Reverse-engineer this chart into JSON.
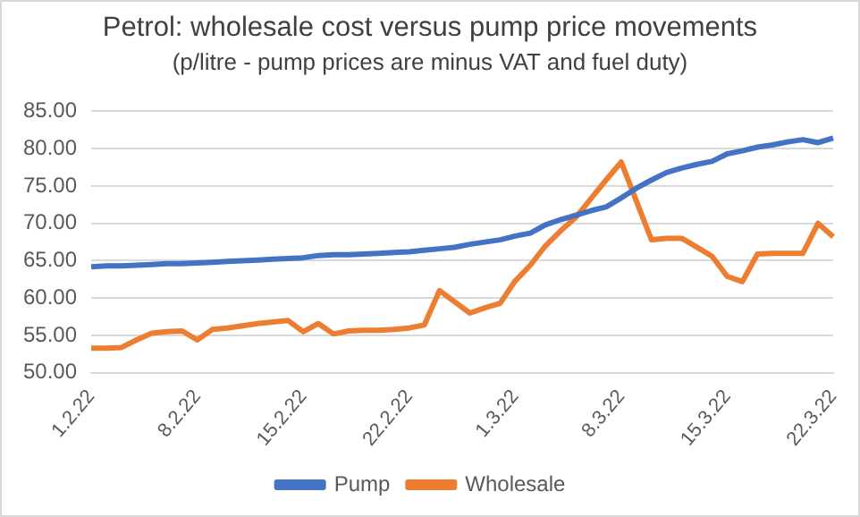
{
  "chart_data": {
    "type": "line",
    "title": "Petrol: wholesale cost versus pump price movements",
    "subtitle": "(p/litre - pump prices are minus VAT and fuel duty)",
    "categories": [
      "1.2.22",
      null,
      null,
      null,
      null,
      null,
      null,
      "8.2.22",
      null,
      null,
      null,
      null,
      null,
      null,
      "15.2.22",
      null,
      null,
      null,
      null,
      null,
      null,
      "22.2.22",
      null,
      null,
      null,
      null,
      null,
      null,
      "1.3.22",
      null,
      null,
      null,
      null,
      null,
      null,
      "8.3.22",
      null,
      null,
      null,
      null,
      null,
      null,
      "15.3.22",
      null,
      null,
      null,
      null,
      null,
      null,
      "22.3.22"
    ],
    "series": [
      {
        "name": "Pump",
        "color": "#4472c4",
        "values": [
          64.2,
          64.3,
          64.3,
          64.4,
          64.5,
          64.6,
          64.6,
          64.7,
          64.8,
          64.9,
          65.0,
          65.1,
          65.2,
          65.3,
          65.4,
          65.7,
          65.8,
          65.8,
          65.9,
          66.0,
          66.1,
          66.2,
          66.4,
          66.6,
          66.8,
          67.2,
          67.5,
          67.8,
          68.3,
          68.7,
          69.8,
          70.5,
          71.1,
          71.7,
          72.2,
          73.4,
          74.7,
          75.8,
          76.8,
          77.4,
          77.9,
          78.3,
          79.3,
          79.7,
          80.2,
          80.5,
          80.9,
          81.2,
          80.8,
          81.4
        ]
      },
      {
        "name": "Wholesale",
        "color": "#ed7d31",
        "values": [
          53.3,
          53.3,
          53.4,
          54.4,
          55.3,
          55.5,
          55.6,
          54.4,
          55.8,
          56.0,
          56.3,
          56.6,
          56.8,
          57.0,
          55.5,
          56.6,
          55.2,
          55.6,
          55.7,
          55.7,
          55.8,
          56.0,
          56.4,
          61.0,
          59.5,
          58.0,
          58.7,
          59.3,
          62.3,
          64.4,
          67.0,
          69.0,
          70.8,
          73.3,
          75.8,
          78.2,
          73.0,
          67.8,
          68.0,
          68.0,
          66.8,
          65.6,
          62.9,
          62.2,
          65.9,
          66.0,
          66.0,
          66.0,
          70.0,
          68.2
        ]
      }
    ],
    "ylim": [
      50,
      85
    ],
    "yticks": [
      {
        "value": 50,
        "label": "50.00"
      },
      {
        "value": 55,
        "label": "55.00"
      },
      {
        "value": 60,
        "label": "60.00"
      },
      {
        "value": 65,
        "label": "65.00"
      },
      {
        "value": 70,
        "label": "70.00"
      },
      {
        "value": 75,
        "label": "75.00"
      },
      {
        "value": 80,
        "label": "80.00"
      },
      {
        "value": 85,
        "label": "85.00"
      }
    ],
    "grid": "y",
    "legend": "bottom",
    "marker": "none",
    "line_style": "solid"
  }
}
